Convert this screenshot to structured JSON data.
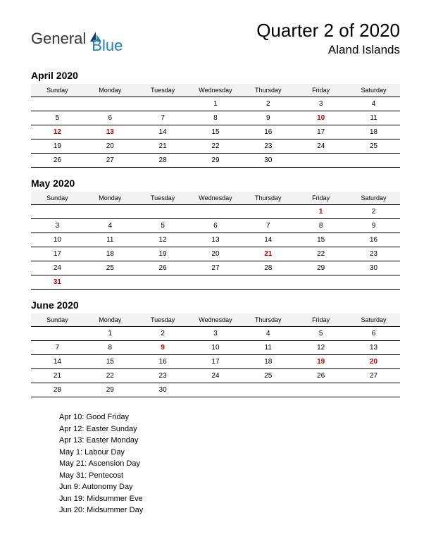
{
  "logo": {
    "part1": "General",
    "part2": "Blue"
  },
  "header": {
    "title": "Quarter 2 of 2020",
    "subtitle": "Aland Islands"
  },
  "daynames": [
    "Sunday",
    "Monday",
    "Tuesday",
    "Wednesday",
    "Thursday",
    "Friday",
    "Saturday"
  ],
  "months": [
    {
      "title": "April 2020",
      "weeks": [
        [
          {
            "d": ""
          },
          {
            "d": ""
          },
          {
            "d": ""
          },
          {
            "d": "1"
          },
          {
            "d": "2"
          },
          {
            "d": "3"
          },
          {
            "d": "4"
          }
        ],
        [
          {
            "d": "5"
          },
          {
            "d": "6"
          },
          {
            "d": "7"
          },
          {
            "d": "8"
          },
          {
            "d": "9"
          },
          {
            "d": "10",
            "h": true
          },
          {
            "d": "11"
          }
        ],
        [
          {
            "d": "12",
            "h": true
          },
          {
            "d": "13",
            "h": true
          },
          {
            "d": "14"
          },
          {
            "d": "15"
          },
          {
            "d": "16"
          },
          {
            "d": "17"
          },
          {
            "d": "18"
          }
        ],
        [
          {
            "d": "19"
          },
          {
            "d": "20"
          },
          {
            "d": "21"
          },
          {
            "d": "22"
          },
          {
            "d": "23"
          },
          {
            "d": "24"
          },
          {
            "d": "25"
          }
        ],
        [
          {
            "d": "26"
          },
          {
            "d": "27"
          },
          {
            "d": "28"
          },
          {
            "d": "29"
          },
          {
            "d": "30"
          },
          {
            "d": ""
          },
          {
            "d": ""
          }
        ]
      ]
    },
    {
      "title": "May 2020",
      "weeks": [
        [
          {
            "d": ""
          },
          {
            "d": ""
          },
          {
            "d": ""
          },
          {
            "d": ""
          },
          {
            "d": ""
          },
          {
            "d": "1",
            "h": true
          },
          {
            "d": "2"
          }
        ],
        [
          {
            "d": "3"
          },
          {
            "d": "4"
          },
          {
            "d": "5"
          },
          {
            "d": "6"
          },
          {
            "d": "7"
          },
          {
            "d": "8"
          },
          {
            "d": "9"
          }
        ],
        [
          {
            "d": "10"
          },
          {
            "d": "11"
          },
          {
            "d": "12"
          },
          {
            "d": "13"
          },
          {
            "d": "14"
          },
          {
            "d": "15"
          },
          {
            "d": "16"
          }
        ],
        [
          {
            "d": "17"
          },
          {
            "d": "18"
          },
          {
            "d": "19"
          },
          {
            "d": "20"
          },
          {
            "d": "21",
            "h": true
          },
          {
            "d": "22"
          },
          {
            "d": "23"
          }
        ],
        [
          {
            "d": "24"
          },
          {
            "d": "25"
          },
          {
            "d": "26"
          },
          {
            "d": "27"
          },
          {
            "d": "28"
          },
          {
            "d": "29"
          },
          {
            "d": "30"
          }
        ],
        [
          {
            "d": "31",
            "h": true
          },
          {
            "d": ""
          },
          {
            "d": ""
          },
          {
            "d": ""
          },
          {
            "d": ""
          },
          {
            "d": ""
          },
          {
            "d": ""
          }
        ]
      ]
    },
    {
      "title": "June 2020",
      "weeks": [
        [
          {
            "d": ""
          },
          {
            "d": "1"
          },
          {
            "d": "2"
          },
          {
            "d": "3"
          },
          {
            "d": "4"
          },
          {
            "d": "5"
          },
          {
            "d": "6"
          }
        ],
        [
          {
            "d": "7"
          },
          {
            "d": "8"
          },
          {
            "d": "9",
            "h": true
          },
          {
            "d": "10"
          },
          {
            "d": "11"
          },
          {
            "d": "12"
          },
          {
            "d": "13"
          }
        ],
        [
          {
            "d": "14"
          },
          {
            "d": "15"
          },
          {
            "d": "16"
          },
          {
            "d": "17"
          },
          {
            "d": "18"
          },
          {
            "d": "19",
            "h": true
          },
          {
            "d": "20",
            "h": true
          }
        ],
        [
          {
            "d": "21"
          },
          {
            "d": "22"
          },
          {
            "d": "23"
          },
          {
            "d": "24"
          },
          {
            "d": "25"
          },
          {
            "d": "26"
          },
          {
            "d": "27"
          }
        ],
        [
          {
            "d": "28"
          },
          {
            "d": "29"
          },
          {
            "d": "30"
          },
          {
            "d": ""
          },
          {
            "d": ""
          },
          {
            "d": ""
          },
          {
            "d": ""
          }
        ]
      ]
    }
  ],
  "holidays": [
    "Apr 10: Good Friday",
    "Apr 12: Easter Sunday",
    "Apr 13: Easter Monday",
    "May 1: Labour Day",
    "May 21: Ascension Day",
    "May 31: Pentecost",
    "Jun 9: Autonomy Day",
    "Jun 19: Midsummer Eve",
    "Jun 20: Midsummer Day"
  ],
  "colors": {
    "holiday": "#c00000",
    "logo_blue": "#1e7fc2",
    "header_bg": "#f2f2f2",
    "border": "#000000"
  }
}
